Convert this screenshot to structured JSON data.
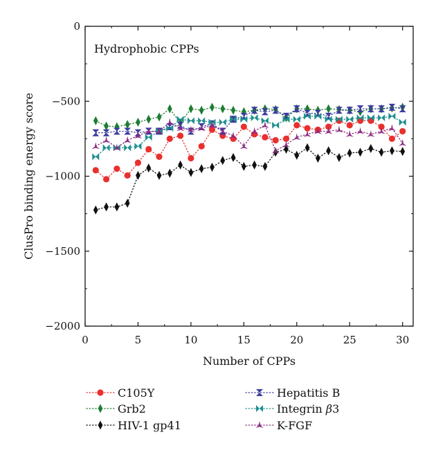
{
  "chart_data": {
    "type": "line",
    "title": "",
    "annotation": "Hydrophobic CPPs",
    "xlabel": "Number of CPPs",
    "ylabel": "ClusPro binding energy score",
    "xlim": [
      0,
      31
    ],
    "ylim": [
      -2000,
      0
    ],
    "xticks": [
      0,
      5,
      10,
      15,
      20,
      25,
      30
    ],
    "yticks": [
      -2000,
      -1500,
      -1000,
      -500,
      0
    ],
    "xtick_labels": [
      "0",
      "5",
      "10",
      "15",
      "20",
      "25",
      "30"
    ],
    "ytick_labels": [
      "−2000",
      "−1500",
      "−1000",
      "−500",
      "0"
    ],
    "grid": false,
    "legend_position": "bottom",
    "x": [
      1,
      2,
      3,
      4,
      5,
      6,
      7,
      8,
      9,
      10,
      11,
      12,
      13,
      14,
      15,
      16,
      17,
      18,
      19,
      20,
      21,
      22,
      23,
      24,
      25,
      26,
      27,
      28,
      29,
      30
    ],
    "series": [
      {
        "name": "C105Y",
        "color": "#e8302e",
        "marker": "circle",
        "values": [
          -960,
          -1020,
          -950,
          -995,
          -910,
          -820,
          -870,
          -750,
          -730,
          -880,
          -800,
          -690,
          -730,
          -750,
          -670,
          -720,
          -740,
          -760,
          -750,
          -660,
          -680,
          -690,
          -670,
          -630,
          -660,
          -630,
          -630,
          -670,
          -750,
          -700
        ]
      },
      {
        "name": "Grb2",
        "color": "#1e7d32",
        "marker": "diamond",
        "values": [
          -630,
          -665,
          -670,
          -655,
          -640,
          -620,
          -605,
          -550,
          -645,
          -550,
          -560,
          -540,
          -550,
          -560,
          -570,
          -560,
          -550,
          -555,
          -610,
          -550,
          -550,
          -560,
          -550,
          -555,
          -560,
          -570,
          -550,
          -550,
          -545,
          -540
        ]
      },
      {
        "name": "HIV-1 gp41",
        "color": "#111111",
        "marker": "diamond",
        "values": [
          -1225,
          -1205,
          -1205,
          -1180,
          -995,
          -945,
          -995,
          -980,
          -925,
          -975,
          -950,
          -940,
          -895,
          -875,
          -935,
          -925,
          -935,
          -840,
          -820,
          -860,
          -810,
          -880,
          -830,
          -875,
          -845,
          -840,
          -815,
          -840,
          -830,
          -835
        ]
      },
      {
        "name": "Hepatitis B",
        "color": "#3b3b9e",
        "marker": "bowtie-v",
        "values": [
          -710,
          -710,
          -700,
          -700,
          -710,
          -700,
          -700,
          -670,
          -660,
          -700,
          -670,
          -650,
          -700,
          -620,
          -600,
          -560,
          -570,
          -560,
          -600,
          -550,
          -580,
          -580,
          -600,
          -560,
          -560,
          -550,
          -550,
          -550,
          -540,
          -550
        ]
      },
      {
        "name": "Integrin β3",
        "color": "#1f8f8f",
        "marker": "bowtie-h",
        "values": [
          -870,
          -810,
          -810,
          -810,
          -800,
          -740,
          -700,
          -680,
          -620,
          -630,
          -630,
          -640,
          -640,
          -620,
          -620,
          -610,
          -630,
          -660,
          -620,
          -620,
          -600,
          -600,
          -620,
          -620,
          -620,
          -610,
          -610,
          -610,
          -600,
          -640
        ]
      },
      {
        "name": "K-FGF",
        "color": "#8b2a82",
        "marker": "tri",
        "values": [
          -800,
          -760,
          -810,
          -760,
          -730,
          -700,
          -700,
          -640,
          -680,
          -690,
          -680,
          -660,
          -700,
          -730,
          -800,
          -700,
          -660,
          -830,
          -790,
          -740,
          -720,
          -700,
          -700,
          -690,
          -720,
          -700,
          -720,
          -700,
          -680,
          -780
        ]
      }
    ],
    "legend_labels": {
      "s0": "C105Y",
      "s1": "Grb2",
      "s2": "HIV-1 gp41",
      "s3": "Hepatitis B",
      "s4_prefix": "Integrin ",
      "s4_symbol": "β",
      "s4_suffix": "3",
      "s5": "K-FGF"
    }
  }
}
